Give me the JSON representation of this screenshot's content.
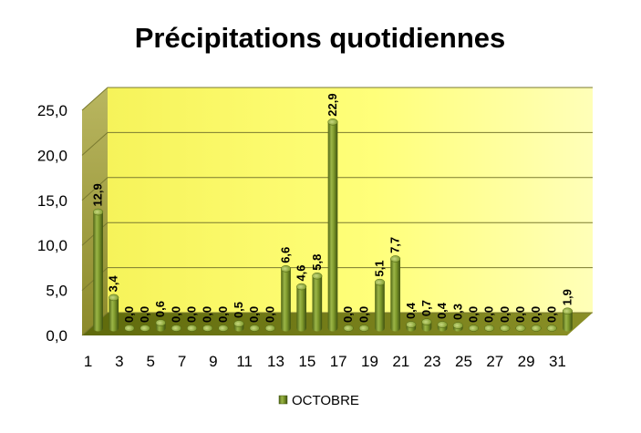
{
  "chart_data": {
    "type": "bar",
    "title": "Précipitations quotidiennes",
    "xlabel": "",
    "ylabel": "",
    "ylim": [
      0,
      25
    ],
    "yticks": [
      "0,0",
      "5,0",
      "10,0",
      "15,0",
      "20,0",
      "25,0"
    ],
    "categories": [
      "1",
      "2",
      "3",
      "4",
      "5",
      "6",
      "7",
      "8",
      "9",
      "10",
      "11",
      "12",
      "13",
      "14",
      "15",
      "16",
      "17",
      "18",
      "19",
      "20",
      "21",
      "22",
      "23",
      "24",
      "25",
      "26",
      "27",
      "28",
      "29",
      "30",
      "31"
    ],
    "xtick_labels": [
      "1",
      "3",
      "5",
      "7",
      "9",
      "11",
      "13",
      "15",
      "17",
      "19",
      "21",
      "23",
      "25",
      "27",
      "29",
      "31"
    ],
    "series": [
      {
        "name": "OCTOBRE",
        "values": [
          12.9,
          3.4,
          0.0,
          0.0,
          0.6,
          0.0,
          0.0,
          0.0,
          0.0,
          0.5,
          0.0,
          0.0,
          6.6,
          4.6,
          5.8,
          22.9,
          0.0,
          0.0,
          5.1,
          7.7,
          0.4,
          0.7,
          0.4,
          0.3,
          0.0,
          0.0,
          0.0,
          0.0,
          0.0,
          0.0,
          1.9
        ],
        "labels": [
          "12,9",
          "3,4",
          "0,0",
          "0,0",
          "0,6",
          "0,0",
          "0,0",
          "0,0",
          "0,0",
          "0,5",
          "0,0",
          "0,0",
          "6,6",
          "4,6",
          "5,8",
          "22,9",
          "0,0",
          "0,0",
          "5,1",
          "7,7",
          "0,4",
          "0,7",
          "0,4",
          "0,3",
          "0,0",
          "0,0",
          "0,0",
          "0,0",
          "0,0",
          "0,0",
          "1,9"
        ]
      }
    ],
    "grid": true,
    "legend_position": "bottom",
    "colors": {
      "bar_light": "#b7c96a",
      "bar_mid": "#7f9a2c",
      "bar_dark": "#4f6414",
      "wall_yellow": "#ffff66",
      "wall_olive": "#9e9b3a"
    }
  }
}
